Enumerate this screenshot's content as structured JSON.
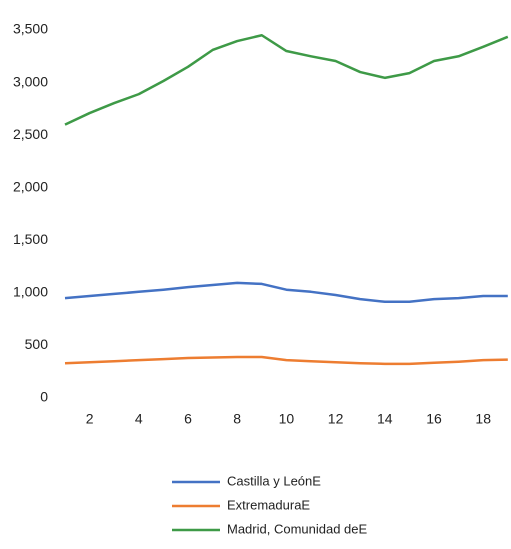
{
  "chart_data": {
    "type": "line",
    "categories": [
      null,
      "2",
      null,
      "4",
      null,
      "6",
      null,
      "8",
      null,
      "10",
      null,
      "12",
      null,
      "14",
      null,
      "16",
      null,
      "18",
      null
    ],
    "series": [
      {
        "name": "Castilla y LeónE",
        "color": "#4472c4",
        "values": [
          950,
          970,
          990,
          1010,
          1030,
          1055,
          1075,
          1095,
          1085,
          1030,
          1010,
          980,
          940,
          915,
          915,
          940,
          950,
          970,
          970
        ]
      },
      {
        "name": "ExtremaduraE",
        "color": "#ed7d31",
        "values": [
          330,
          340,
          350,
          360,
          370,
          380,
          385,
          390,
          390,
          360,
          350,
          340,
          330,
          325,
          325,
          335,
          345,
          360,
          365
        ]
      },
      {
        "name": "Madrid, Comunidad deE",
        "color": "#3e9a47",
        "values": [
          2600,
          2710,
          2805,
          2890,
          3015,
          3150,
          3310,
          3395,
          3450,
          3300,
          3250,
          3205,
          3100,
          3045,
          3090,
          3205,
          3250,
          3340,
          3435
        ]
      }
    ],
    "ylim": [
      0,
      3500
    ],
    "yticks": [
      0,
      500,
      {
        "value": 1000,
        "label": "1,000"
      },
      {
        "value": 1500,
        "label": "1,500"
      },
      {
        "value": 2000,
        "label": "2,000"
      },
      {
        "value": 2500,
        "label": "2,500"
      },
      {
        "value": 3000,
        "label": "3,000"
      },
      {
        "value": 3500,
        "label": "3,500"
      }
    ],
    "legend": "bottom"
  }
}
